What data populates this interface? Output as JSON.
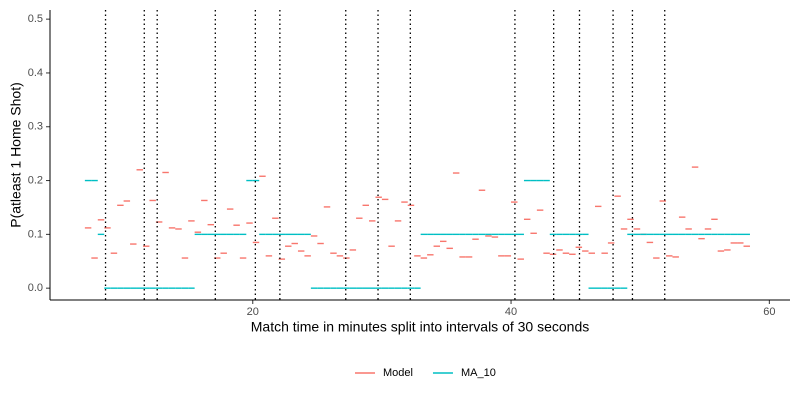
{
  "chart_data": {
    "type": "segment",
    "xlabel": "Match time in minutes split into intervals of 30 seconds",
    "ylabel": "P(atleast 1 Home Shot)",
    "xlim": [
      4.3,
      61.6
    ],
    "ylim": [
      -0.022,
      0.517
    ],
    "xticks": [
      20,
      40,
      60
    ],
    "yticks": [
      {
        "value": 0,
        "label": "0.0"
      },
      0.1,
      0.2,
      0.3,
      0.4,
      0.5
    ],
    "grid": false,
    "legend": "bottom",
    "vlines": [
      8.6,
      11.6,
      12.6,
      17.1,
      20.2,
      22.1,
      27.2,
      29.7,
      32.2,
      40.3,
      43.3,
      45.3,
      47.9,
      49.4,
      51.9
    ],
    "x": [
      7.0,
      7.5,
      8.0,
      8.5,
      9.0,
      9.5,
      10.0,
      10.5,
      11.0,
      11.5,
      12.0,
      12.5,
      13.0,
      13.5,
      14.0,
      14.5,
      15.0,
      15.5,
      16.0,
      16.5,
      17.0,
      17.5,
      18.0,
      18.5,
      19.0,
      19.5,
      20.0,
      20.5,
      21.0,
      21.5,
      22.0,
      22.5,
      23.0,
      23.5,
      24.0,
      24.5,
      25.0,
      25.5,
      26.0,
      26.5,
      27.0,
      27.5,
      28.0,
      28.5,
      29.0,
      29.5,
      30.0,
      30.5,
      31.0,
      31.5,
      32.0,
      32.5,
      33.0,
      33.5,
      34.0,
      34.5,
      35.0,
      35.5,
      36.0,
      36.5,
      37.0,
      37.5,
      38.0,
      38.5,
      39.0,
      39.5,
      40.0,
      40.5,
      41.0,
      41.5,
      42.0,
      42.5,
      43.0,
      43.5,
      44.0,
      44.5,
      45.0,
      45.5,
      46.0,
      46.5,
      47.0,
      47.5,
      48.0,
      48.5,
      49.0,
      49.5,
      50.0,
      50.5,
      51.0,
      51.5,
      52.0,
      52.5,
      53.0,
      53.5,
      54.0,
      54.5,
      55.0,
      55.5,
      56.0,
      56.5,
      57.0,
      57.5,
      58.0
    ],
    "series": [
      {
        "name": "Model",
        "color": "#F8766D",
        "values": [
          0.112,
          0.056,
          0.127,
          0.112,
          0.065,
          0.154,
          0.162,
          0.082,
          0.22,
          0.078,
          0.163,
          0.123,
          0.215,
          0.112,
          0.11,
          0.056,
          0.125,
          0.104,
          0.163,
          0.118,
          0.056,
          0.065,
          0.147,
          0.117,
          0.056,
          0.121,
          0.085,
          0.208,
          0.06,
          0.13,
          0.054,
          0.078,
          0.083,
          0.069,
          0.06,
          0.097,
          0.083,
          0.151,
          0.065,
          0.06,
          0.056,
          0.071,
          0.13,
          0.154,
          0.125,
          0.169,
          0.165,
          0.078,
          0.125,
          0.16,
          0.154,
          0.06,
          0.056,
          0.062,
          0.078,
          0.087,
          0.074,
          0.214,
          0.058,
          0.058,
          0.091,
          0.182,
          0.097,
          0.095,
          0.06,
          0.06,
          0.16,
          0.054,
          0.128,
          0.102,
          0.145,
          0.065,
          0.063,
          0.071,
          0.065,
          0.063,
          0.076,
          0.069,
          0.065,
          0.152,
          0.065,
          0.084,
          0.171,
          0.11,
          0.128,
          0.11,
          0.1,
          0.085,
          0.056,
          0.162,
          0.06,
          0.058,
          0.132,
          0.11,
          0.225,
          0.092,
          0.11,
          0.128,
          0.069,
          0.071,
          0.084,
          0.084,
          0.078
        ]
      },
      {
        "name": "MA_10",
        "color": "#00BFC4",
        "values": [
          0.2,
          0.2,
          0.1,
          0,
          0,
          0,
          0,
          0,
          0,
          0,
          0,
          0,
          0,
          0,
          0,
          0,
          0,
          0.1,
          0.1,
          0.1,
          0.1,
          0.1,
          0.1,
          0.1,
          0.1,
          0.2,
          0.2,
          0.1,
          0.1,
          0.1,
          0.1,
          0.1,
          0.1,
          0.1,
          0.1,
          0,
          0,
          0,
          0,
          0,
          0,
          0,
          0,
          0,
          0,
          0,
          0,
          0,
          0,
          0,
          0,
          0,
          0.1,
          0.1,
          0.1,
          0.1,
          0.1,
          0.1,
          0.1,
          0.1,
          0.1,
          0.1,
          0.1,
          0.1,
          0.1,
          0.1,
          0.1,
          0.1,
          0.2,
          0.2,
          0.2,
          0.2,
          0.1,
          0.1,
          0.1,
          0.1,
          0.1,
          0.1,
          0,
          0,
          0,
          0,
          0,
          0,
          0.1,
          0.1,
          0.1,
          0.1,
          0.1,
          0.1,
          0.1,
          0.1,
          0.1,
          0.1,
          0.1,
          0.1,
          0.1,
          0.1,
          0.1,
          0.1,
          0.1,
          0.1,
          0.1
        ]
      }
    ]
  }
}
